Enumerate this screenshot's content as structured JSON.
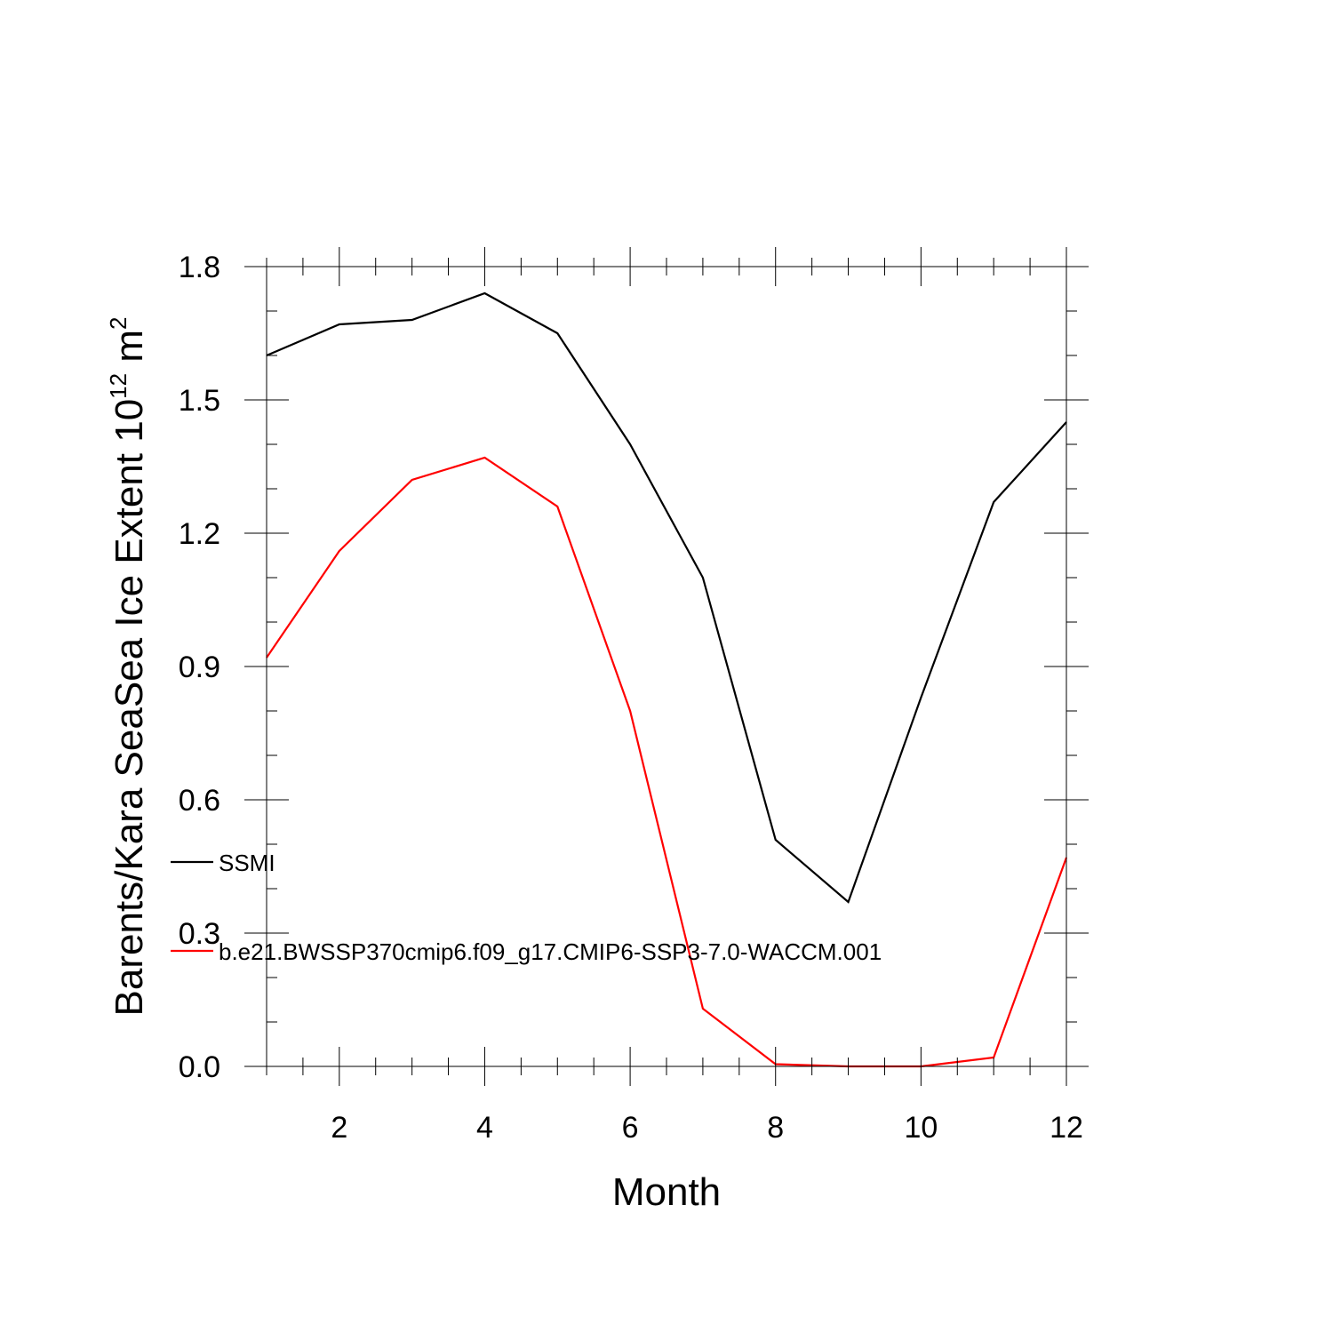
{
  "chart_data": {
    "type": "line",
    "title": "",
    "xlabel": "Month",
    "ylabel": {
      "main": "Barents/Kara SeaSea Ice Extent 10",
      "exponent": "12",
      "unit_suffix": " m",
      "unit_exponent": "2"
    },
    "xlim": [
      1,
      12
    ],
    "ylim": [
      0,
      1.8
    ],
    "x_ticks": [
      2,
      4,
      6,
      8,
      10,
      12
    ],
    "x_tick_labels": [
      "2",
      "4",
      "6",
      "8",
      "10",
      "12"
    ],
    "y_ticks": [
      0,
      0.3,
      0.6,
      0.9,
      1.2,
      1.5,
      1.8
    ],
    "y_tick_labels": [
      "0.0",
      "0.3",
      "0.6",
      "0.9",
      "1.2",
      "1.5",
      "1.8"
    ],
    "x": [
      1,
      2,
      3,
      4,
      5,
      6,
      7,
      8,
      9,
      10,
      11,
      12
    ],
    "grid": false,
    "legend_position": "left-inside",
    "series": [
      {
        "name": "SSMI",
        "color": "#000000",
        "values": [
          1.6,
          1.67,
          1.68,
          1.74,
          1.65,
          1.4,
          1.1,
          0.51,
          0.37,
          0.83,
          1.27,
          1.45
        ]
      },
      {
        "name": "b.e21.BWSSP370cmip6.f09_g17.CMIP6-SSP3-7.0-WACCM.001",
        "color": "#ff0000",
        "values": [
          0.92,
          1.16,
          1.32,
          1.37,
          1.26,
          0.8,
          0.13,
          0.005,
          0.0,
          0.0,
          0.02,
          0.47
        ]
      }
    ]
  }
}
